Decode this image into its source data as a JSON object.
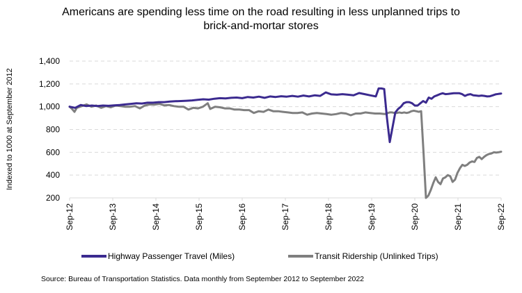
{
  "chart_data": {
    "type": "line",
    "title_lines": [
      "Americans are spending less time on the road resulting in less unplanned trips to",
      "brick-and-mortar stores"
    ],
    "xlabel": "",
    "ylabel": "Indexed to 1000 at September 2012",
    "ylim": [
      200,
      1400
    ],
    "yticks": [
      200,
      400,
      600,
      800,
      1000,
      1200,
      1400
    ],
    "ytick_labels": [
      "200",
      "400",
      "600",
      "800",
      "1,000",
      "1,200",
      "1,400"
    ],
    "xtick_labels": [
      "Sep-12",
      "Sep-13",
      "Sep-14",
      "Sep-15",
      "Sep-16",
      "Sep-17",
      "Sep-18",
      "Sep-19",
      "Sep-20",
      "Sep-21",
      "Sep-22"
    ],
    "x_start": "Sep-2012",
    "x_end": "Sep-2022",
    "frequency": "monthly",
    "grid": "horizontal-dashed",
    "legend_position": "bottom",
    "series": [
      {
        "name": "Highway Passenger Travel (Miles)",
        "color": "#3b2a8f",
        "points": [
          [
            0,
            1000
          ],
          [
            2,
            990
          ],
          [
            4,
            1015
          ],
          [
            6,
            1005
          ],
          [
            8,
            1010
          ],
          [
            10,
            1005
          ],
          [
            12,
            1010
          ],
          [
            14,
            1008
          ],
          [
            16,
            1012
          ],
          [
            18,
            1015
          ],
          [
            20,
            1020
          ],
          [
            22,
            1025
          ],
          [
            24,
            1030
          ],
          [
            26,
            1028
          ],
          [
            28,
            1035
          ],
          [
            30,
            1035
          ],
          [
            32,
            1040
          ],
          [
            34,
            1040
          ],
          [
            36,
            1045
          ],
          [
            38,
            1048
          ],
          [
            40,
            1050
          ],
          [
            42,
            1052
          ],
          [
            44,
            1055
          ],
          [
            46,
            1060
          ],
          [
            48,
            1065
          ],
          [
            50,
            1062
          ],
          [
            52,
            1070
          ],
          [
            54,
            1075
          ],
          [
            56,
            1072
          ],
          [
            58,
            1078
          ],
          [
            60,
            1080
          ],
          [
            62,
            1075
          ],
          [
            64,
            1085
          ],
          [
            66,
            1080
          ],
          [
            68,
            1088
          ],
          [
            70,
            1078
          ],
          [
            72,
            1090
          ],
          [
            74,
            1085
          ],
          [
            76,
            1092
          ],
          [
            78,
            1088
          ],
          [
            80,
            1095
          ],
          [
            82,
            1088
          ],
          [
            84,
            1098
          ],
          [
            86,
            1090
          ],
          [
            88,
            1100
          ],
          [
            90,
            1095
          ],
          [
            92,
            1125
          ],
          [
            94,
            1108
          ],
          [
            96,
            1105
          ],
          [
            98,
            1110
          ],
          [
            100,
            1105
          ],
          [
            102,
            1100
          ],
          [
            104,
            1120
          ],
          [
            106,
            1110
          ],
          [
            108,
            1100
          ],
          [
            110,
            1090
          ],
          [
            111,
            1160
          ],
          [
            112,
            1160
          ],
          [
            113,
            1155
          ],
          [
            114,
            900
          ],
          [
            115,
            690
          ],
          [
            116,
            820
          ],
          [
            117,
            950
          ],
          [
            118,
            980
          ],
          [
            119,
            1000
          ],
          [
            120,
            1030
          ],
          [
            121,
            1040
          ],
          [
            122,
            1040
          ],
          [
            123,
            1030
          ],
          [
            124,
            1010
          ],
          [
            125,
            1010
          ],
          [
            126,
            1030
          ],
          [
            127,
            1050
          ],
          [
            128,
            1035
          ],
          [
            129,
            1080
          ],
          [
            130,
            1070
          ],
          [
            131,
            1090
          ],
          [
            132,
            1100
          ],
          [
            133,
            1110
          ],
          [
            134,
            1118
          ],
          [
            135,
            1110
          ],
          [
            136,
            1112
          ],
          [
            137,
            1115
          ],
          [
            138,
            1118
          ],
          [
            139,
            1118
          ],
          [
            140,
            1118
          ],
          [
            141,
            1110
          ],
          [
            142,
            1095
          ],
          [
            143,
            1105
          ],
          [
            144,
            1110
          ],
          [
            145,
            1100
          ],
          [
            146,
            1098
          ],
          [
            147,
            1095
          ],
          [
            148,
            1098
          ],
          [
            149,
            1095
          ],
          [
            150,
            1090
          ],
          [
            151,
            1092
          ],
          [
            152,
            1100
          ],
          [
            153,
            1108
          ],
          [
            154,
            1112
          ],
          [
            155,
            1115
          ]
        ]
      },
      {
        "name": "Transit Ridership (Unlinked Trips)",
        "color": "#7f7f7f",
        "points": [
          [
            0,
            1000
          ],
          [
            1,
            980
          ],
          [
            2,
            955
          ],
          [
            3,
            990
          ],
          [
            5,
            1005
          ],
          [
            7,
            1020
          ],
          [
            9,
            1000
          ],
          [
            11,
            1010
          ],
          [
            13,
            990
          ],
          [
            15,
            1005
          ],
          [
            17,
            995
          ],
          [
            19,
            1010
          ],
          [
            21,
            1005
          ],
          [
            23,
            1000
          ],
          [
            25,
            1000
          ],
          [
            27,
            1005
          ],
          [
            29,
            985
          ],
          [
            31,
            1010
          ],
          [
            33,
            1020
          ],
          [
            35,
            1018
          ],
          [
            37,
            1025
          ],
          [
            39,
            1012
          ],
          [
            41,
            1015
          ],
          [
            43,
            1005
          ],
          [
            45,
            1000
          ],
          [
            47,
            1000
          ],
          [
            49,
            975
          ],
          [
            51,
            990
          ],
          [
            53,
            985
          ],
          [
            55,
            1000
          ],
          [
            57,
            1030
          ],
          [
            58,
            980
          ],
          [
            60,
            1000
          ],
          [
            62,
            995
          ],
          [
            64,
            985
          ],
          [
            66,
            985
          ],
          [
            68,
            975
          ],
          [
            70,
            975
          ],
          [
            72,
            970
          ],
          [
            74,
            970
          ],
          [
            76,
            945
          ],
          [
            78,
            960
          ],
          [
            80,
            955
          ],
          [
            82,
            975
          ],
          [
            84,
            960
          ],
          [
            86,
            960
          ],
          [
            88,
            955
          ],
          [
            90,
            950
          ],
          [
            92,
            945
          ],
          [
            94,
            945
          ],
          [
            96,
            950
          ],
          [
            98,
            930
          ],
          [
            100,
            940
          ],
          [
            102,
            945
          ],
          [
            104,
            940
          ],
          [
            106,
            935
          ],
          [
            108,
            930
          ],
          [
            110,
            935
          ],
          [
            112,
            945
          ],
          [
            114,
            940
          ],
          [
            116,
            925
          ],
          [
            118,
            940
          ],
          [
            120,
            940
          ],
          [
            122,
            950
          ],
          [
            124,
            945
          ],
          [
            126,
            940
          ],
          [
            128,
            940
          ],
          [
            130,
            935
          ],
          [
            132,
            950
          ],
          [
            133,
            950
          ],
          [
            134,
            945
          ],
          [
            135,
            945
          ],
          [
            136,
            950
          ],
          [
            137,
            945
          ],
          [
            138,
            950
          ],
          [
            139,
            945
          ],
          [
            140,
            950
          ],
          [
            141,
            960
          ],
          [
            142,
            965
          ],
          [
            143,
            960
          ],
          [
            144,
            955
          ],
          [
            145,
            960
          ],
          [
            146,
            600
          ],
          [
            147,
            200
          ],
          [
            148,
            220
          ],
          [
            149,
            270
          ],
          [
            150,
            330
          ],
          [
            151,
            380
          ],
          [
            152,
            340
          ],
          [
            153,
            320
          ],
          [
            154,
            370
          ],
          [
            155,
            380
          ],
          [
            156,
            400
          ],
          [
            157,
            390
          ],
          [
            158,
            340
          ],
          [
            159,
            360
          ],
          [
            160,
            420
          ],
          [
            161,
            460
          ],
          [
            162,
            490
          ],
          [
            163,
            480
          ],
          [
            164,
            490
          ],
          [
            165,
            510
          ],
          [
            166,
            520
          ],
          [
            167,
            515
          ],
          [
            168,
            550
          ],
          [
            169,
            560
          ],
          [
            170,
            540
          ],
          [
            171,
            560
          ],
          [
            172,
            575
          ],
          [
            173,
            585
          ],
          [
            174,
            590
          ],
          [
            175,
            600
          ],
          [
            176,
            598
          ],
          [
            177,
            600
          ],
          [
            178,
            605
          ]
        ]
      }
    ]
  },
  "legend": {
    "items": [
      {
        "label": "Highway Passenger Travel (Miles)",
        "color": "#3b2a8f"
      },
      {
        "label": "Transit Ridership (Unlinked Trips)",
        "color": "#7f7f7f"
      }
    ]
  },
  "source": "Source: Bureau of Transportation Statistics. Data monthly from September 2012 to September 2022"
}
